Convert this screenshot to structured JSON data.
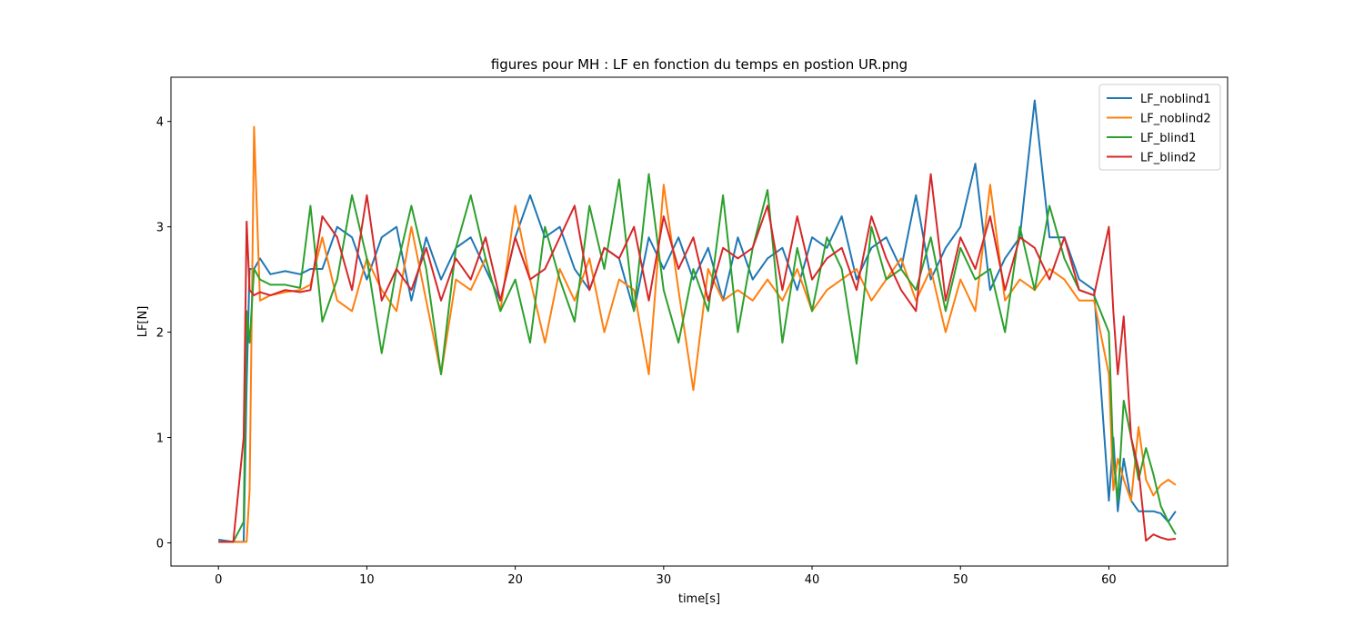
{
  "chart_data": {
    "type": "line",
    "title": "figures pour MH : LF en fonction du temps en postion UR.png",
    "xlabel": "time[s]",
    "ylabel": "LF[N]",
    "x": [
      0,
      1,
      1.7,
      1.9,
      2.1,
      2.4,
      2.8,
      3.5,
      4.5,
      5.5,
      6.2,
      7,
      8,
      9,
      10,
      11,
      12,
      13,
      14,
      15,
      16,
      17,
      18,
      19,
      20,
      21,
      22,
      23,
      24,
      25,
      26,
      27,
      28,
      29,
      30,
      31,
      32,
      33,
      34,
      35,
      36,
      37,
      38,
      39,
      40,
      41,
      42,
      43,
      44,
      45,
      46,
      47,
      48,
      49,
      50,
      51,
      52,
      53,
      54,
      55,
      56,
      57,
      58,
      59,
      60,
      60.3,
      60.6,
      61,
      61.5,
      62,
      62.5,
      63,
      63.5,
      64,
      64.5
    ],
    "series": [
      {
        "name": "LF_noblind1",
        "color": "#1f77b4",
        "values": [
          0.03,
          0.01,
          0.01,
          1.5,
          2.6,
          2.6,
          2.7,
          2.55,
          2.58,
          2.55,
          2.6,
          2.6,
          3.0,
          2.9,
          2.5,
          2.9,
          3.0,
          2.3,
          2.9,
          2.5,
          2.8,
          2.9,
          2.6,
          2.3,
          2.9,
          3.3,
          2.9,
          3.0,
          2.6,
          2.4,
          2.8,
          2.7,
          2.2,
          2.9,
          2.6,
          2.9,
          2.5,
          2.8,
          2.3,
          2.9,
          2.5,
          2.7,
          2.8,
          2.4,
          2.9,
          2.8,
          3.1,
          2.5,
          2.8,
          2.9,
          2.6,
          3.3,
          2.5,
          2.8,
          3.0,
          3.6,
          2.4,
          2.7,
          2.9,
          4.2,
          2.9,
          2.9,
          2.5,
          2.4,
          0.4,
          1.0,
          0.3,
          0.8,
          0.4,
          0.3,
          0.3,
          0.3,
          0.28,
          0.2,
          0.3
        ]
      },
      {
        "name": "LF_noblind2",
        "color": "#ff7f0e",
        "values": [
          0.01,
          0.01,
          0.01,
          0.01,
          0.5,
          3.95,
          2.3,
          2.35,
          2.38,
          2.4,
          2.45,
          2.9,
          2.3,
          2.2,
          2.7,
          2.4,
          2.2,
          3.0,
          2.3,
          1.6,
          2.5,
          2.4,
          2.7,
          2.2,
          3.2,
          2.5,
          1.9,
          2.6,
          2.3,
          2.7,
          2.0,
          2.5,
          2.4,
          1.6,
          3.4,
          2.4,
          1.45,
          2.6,
          2.3,
          2.4,
          2.3,
          2.5,
          2.3,
          2.6,
          2.2,
          2.4,
          2.5,
          2.6,
          2.3,
          2.5,
          2.7,
          2.3,
          2.6,
          2.0,
          2.5,
          2.2,
          3.4,
          2.3,
          2.5,
          2.4,
          2.6,
          2.5,
          2.3,
          2.3,
          1.6,
          0.5,
          0.8,
          0.6,
          0.4,
          1.1,
          0.6,
          0.45,
          0.55,
          0.6,
          0.55
        ]
      },
      {
        "name": "LF_blind1",
        "color": "#2ca02c",
        "values": [
          0.01,
          0.01,
          0.2,
          2.2,
          1.9,
          2.6,
          2.5,
          2.45,
          2.45,
          2.42,
          3.2,
          2.1,
          2.5,
          3.3,
          2.7,
          1.8,
          2.6,
          3.2,
          2.6,
          1.6,
          2.8,
          3.3,
          2.7,
          2.2,
          2.5,
          1.9,
          3.0,
          2.5,
          2.1,
          3.2,
          2.6,
          3.45,
          2.2,
          3.5,
          2.4,
          1.9,
          2.6,
          2.2,
          3.3,
          2.0,
          2.8,
          3.35,
          1.9,
          2.8,
          2.2,
          2.9,
          2.6,
          1.7,
          3.0,
          2.5,
          2.6,
          2.4,
          2.9,
          2.2,
          2.8,
          2.5,
          2.6,
          2.0,
          3.0,
          2.4,
          3.2,
          2.7,
          2.4,
          2.35,
          2.0,
          0.8,
          0.4,
          1.35,
          1.0,
          0.6,
          0.9,
          0.65,
          0.35,
          0.2,
          0.08
        ]
      },
      {
        "name": "LF_blind2",
        "color": "#d62728",
        "values": [
          0.01,
          0.01,
          1.0,
          3.05,
          2.4,
          2.35,
          2.38,
          2.35,
          2.4,
          2.38,
          2.4,
          3.1,
          2.9,
          2.4,
          3.3,
          2.3,
          2.6,
          2.4,
          2.8,
          2.3,
          2.7,
          2.5,
          2.9,
          2.3,
          2.9,
          2.5,
          2.6,
          2.9,
          3.2,
          2.4,
          2.8,
          2.7,
          3.0,
          2.3,
          3.1,
          2.6,
          2.9,
          2.3,
          2.8,
          2.7,
          2.8,
          3.2,
          2.4,
          3.1,
          2.5,
          2.7,
          2.8,
          2.4,
          3.1,
          2.7,
          2.4,
          2.2,
          3.5,
          2.3,
          2.9,
          2.6,
          3.1,
          2.4,
          2.9,
          2.8,
          2.5,
          2.9,
          2.4,
          2.35,
          3.0,
          2.2,
          1.6,
          2.15,
          1.0,
          0.7,
          0.02,
          0.08,
          0.05,
          0.03,
          0.04
        ]
      }
    ],
    "xlim": [
      -3.2,
      68
    ],
    "xticks": [
      0,
      10,
      20,
      30,
      40,
      50,
      60
    ],
    "ylim": [
      -0.22,
      4.42
    ],
    "yticks": [
      0,
      1,
      2,
      3,
      4
    ],
    "legend": "upper right"
  }
}
